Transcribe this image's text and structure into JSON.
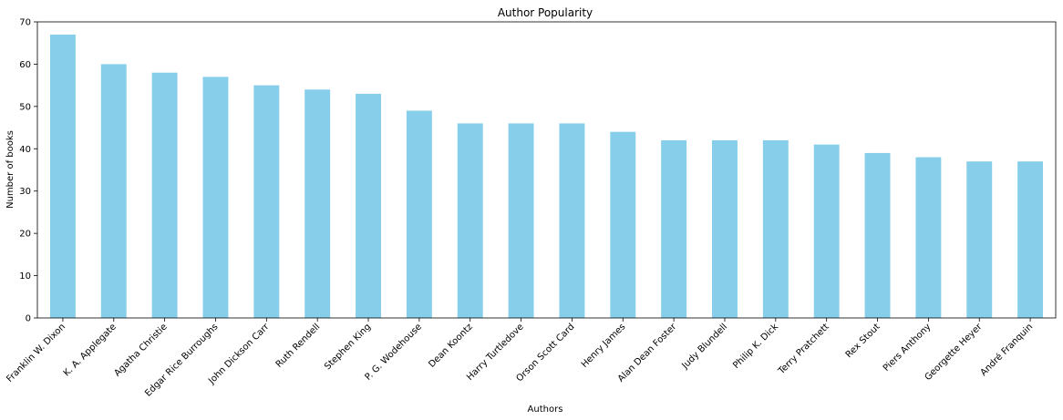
{
  "chart_data": {
    "type": "bar",
    "title": "Author Popularity",
    "xlabel": "Authors",
    "ylabel": "Number of books",
    "categories": [
      "Franklin W. Dixon",
      "K. A. Applegate",
      "Agatha Christie",
      "Edgar Rice Burroughs",
      "John Dickson Carr",
      "Ruth Rendell",
      "Stephen King",
      "P. G. Wodehouse",
      "Dean Koontz",
      "Harry Turtledove",
      "Orson Scott Card",
      "Henry James",
      "Alan Dean Foster",
      "Judy Blundell",
      "Philip K. Dick",
      "Terry Pratchett",
      "Rex Stout",
      "Piers Anthony",
      "Georgette Heyer",
      "André Franquin"
    ],
    "values": [
      67,
      60,
      58,
      57,
      55,
      54,
      53,
      49,
      46,
      46,
      46,
      44,
      42,
      42,
      42,
      41,
      39,
      38,
      37,
      37
    ],
    "ylim": [
      0,
      70
    ],
    "yticks": [
      0,
      10,
      20,
      30,
      40,
      50,
      60,
      70
    ],
    "bar_color": "#87ceeb",
    "grid": false,
    "legend": false
  }
}
